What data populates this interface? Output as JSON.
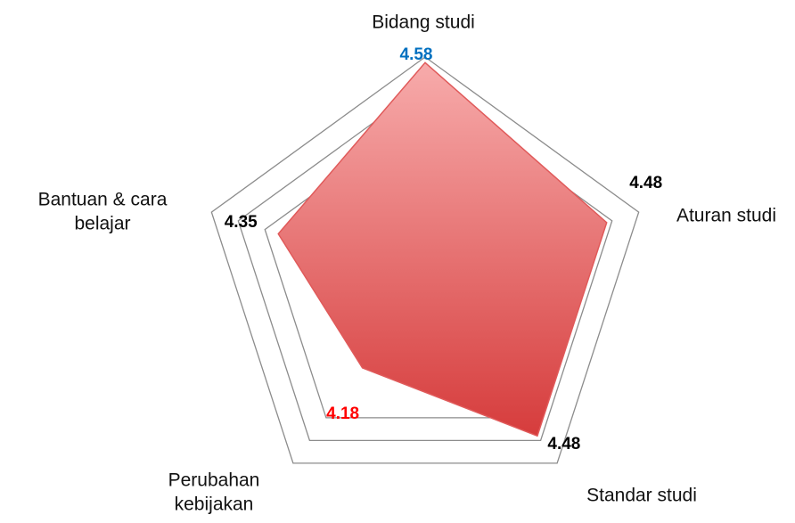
{
  "chart_data": {
    "type": "radar",
    "categories": [
      "Bidang studi",
      "Aturan studi",
      "Standar studi",
      "Perubahan kebijakan",
      "Bantuan & cara belajar"
    ],
    "values": [
      4.58,
      4.48,
      4.48,
      4.18,
      4.35
    ],
    "value_label_colors": [
      "#0070c0",
      "#000000",
      "#000000",
      "#ff0000",
      "#000000"
    ],
    "color": "#e05a5a",
    "ylim": [
      3.8,
      4.6
    ],
    "yticks": [
      4.4,
      4.5,
      4.6
    ],
    "grid": true
  }
}
